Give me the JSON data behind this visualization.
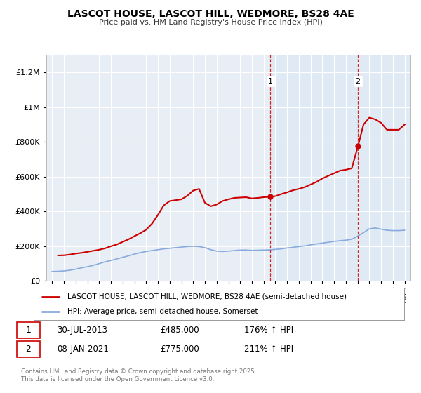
{
  "title": "LASCOT HOUSE, LASCOT HILL, WEDMORE, BS28 4AE",
  "subtitle": "Price paid vs. HM Land Registry's House Price Index (HPI)",
  "bg_color": "#e8eef5",
  "bg_color_highlighted": "#dce8f5",
  "legend_label_red": "LASCOT HOUSE, LASCOT HILL, WEDMORE, BS28 4AE (semi-detached house)",
  "legend_label_blue": "HPI: Average price, semi-detached house, Somerset",
  "sale1_label": "1",
  "sale1_date": "30-JUL-2013",
  "sale1_price": "£485,000",
  "sale1_hpi": "176% ↑ HPI",
  "sale1_x": 2013.58,
  "sale1_y": 485000,
  "sale2_label": "2",
  "sale2_date": "08-JAN-2021",
  "sale2_price": "£775,000",
  "sale2_hpi": "211% ↑ HPI",
  "sale2_x": 2021.03,
  "sale2_y": 775000,
  "footer": "Contains HM Land Registry data © Crown copyright and database right 2025.\nThis data is licensed under the Open Government Licence v3.0.",
  "red_color": "#cc0000",
  "blue_color": "#88aadd",
  "dashed_color": "#cc0000",
  "ylim": [
    0,
    1300000
  ],
  "xlim": [
    1994.5,
    2025.5
  ],
  "yticks": [
    0,
    200000,
    400000,
    600000,
    800000,
    1000000,
    1200000
  ],
  "ytick_labels": [
    "£0",
    "£200K",
    "£400K",
    "£600K",
    "£800K",
    "£1M",
    "£1.2M"
  ],
  "xticks": [
    1995,
    1996,
    1997,
    1998,
    1999,
    2000,
    2001,
    2002,
    2003,
    2004,
    2005,
    2006,
    2007,
    2008,
    2009,
    2010,
    2011,
    2012,
    2013,
    2014,
    2015,
    2016,
    2017,
    2018,
    2019,
    2020,
    2021,
    2022,
    2023,
    2024,
    2025
  ],
  "red_x": [
    1995.5,
    1996.0,
    1996.5,
    1997.0,
    1997.5,
    1998.0,
    1998.5,
    1999.0,
    1999.5,
    2000.0,
    2000.5,
    2001.0,
    2001.5,
    2002.0,
    2002.5,
    2003.0,
    2003.5,
    2004.0,
    2004.5,
    2005.0,
    2005.5,
    2006.0,
    2006.5,
    2007.0,
    2007.5,
    2008.0,
    2008.5,
    2009.0,
    2009.5,
    2010.0,
    2010.5,
    2011.0,
    2011.5,
    2012.0,
    2012.5,
    2013.0,
    2013.58,
    2014.0,
    2014.5,
    2015.0,
    2015.5,
    2016.0,
    2016.5,
    2017.0,
    2017.5,
    2018.0,
    2018.5,
    2019.0,
    2019.5,
    2020.0,
    2020.5,
    2021.03,
    2021.5,
    2022.0,
    2022.5,
    2023.0,
    2023.5,
    2024.0,
    2024.5,
    2025.0
  ],
  "red_y": [
    147000,
    148000,
    152000,
    158000,
    162000,
    168000,
    174000,
    180000,
    188000,
    200000,
    210000,
    225000,
    240000,
    258000,
    275000,
    295000,
    330000,
    380000,
    435000,
    460000,
    465000,
    470000,
    490000,
    520000,
    530000,
    450000,
    430000,
    440000,
    460000,
    470000,
    478000,
    480000,
    482000,
    475000,
    478000,
    482000,
    485000,
    488000,
    500000,
    510000,
    522000,
    530000,
    540000,
    555000,
    570000,
    590000,
    605000,
    620000,
    635000,
    640000,
    648000,
    775000,
    900000,
    940000,
    930000,
    910000,
    870000,
    870000,
    870000,
    900000
  ],
  "blue_x": [
    1995.0,
    1995.5,
    1996.0,
    1996.5,
    1997.0,
    1997.5,
    1998.0,
    1998.5,
    1999.0,
    1999.5,
    2000.0,
    2000.5,
    2001.0,
    2001.5,
    2002.0,
    2002.5,
    2003.0,
    2003.5,
    2004.0,
    2004.5,
    2005.0,
    2005.5,
    2006.0,
    2006.5,
    2007.0,
    2007.5,
    2008.0,
    2008.5,
    2009.0,
    2009.5,
    2010.0,
    2010.5,
    2011.0,
    2011.5,
    2012.0,
    2012.5,
    2013.0,
    2013.5,
    2014.0,
    2014.5,
    2015.0,
    2015.5,
    2016.0,
    2016.5,
    2017.0,
    2017.5,
    2018.0,
    2018.5,
    2019.0,
    2019.5,
    2020.0,
    2020.5,
    2021.0,
    2021.5,
    2022.0,
    2022.5,
    2023.0,
    2023.5,
    2024.0,
    2024.5,
    2025.0
  ],
  "blue_y": [
    55000,
    56000,
    58000,
    62000,
    68000,
    76000,
    82000,
    90000,
    100000,
    110000,
    118000,
    127000,
    136000,
    145000,
    155000,
    163000,
    170000,
    175000,
    180000,
    185000,
    188000,
    192000,
    195000,
    198000,
    200000,
    198000,
    192000,
    180000,
    172000,
    170000,
    172000,
    175000,
    178000,
    178000,
    176000,
    177000,
    178000,
    179000,
    182000,
    185000,
    190000,
    194000,
    198000,
    202000,
    208000,
    213000,
    218000,
    223000,
    228000,
    232000,
    235000,
    240000,
    258000,
    278000,
    300000,
    305000,
    298000,
    292000,
    290000,
    290000,
    292000
  ]
}
